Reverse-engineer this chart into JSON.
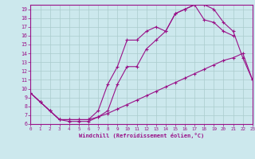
{
  "xlabel": "Windchill (Refroidissement éolien,°C)",
  "bg_color": "#cce8ed",
  "grid_color": "#aacccc",
  "line_color": "#991188",
  "xlim": [
    0,
    23
  ],
  "ylim": [
    6,
    19.5
  ],
  "xticks": [
    0,
    1,
    2,
    3,
    4,
    5,
    6,
    7,
    8,
    9,
    10,
    11,
    12,
    13,
    14,
    15,
    16,
    17,
    18,
    19,
    20,
    21,
    22,
    23
  ],
  "yticks": [
    6,
    7,
    8,
    9,
    10,
    11,
    12,
    13,
    14,
    15,
    16,
    17,
    18,
    19
  ],
  "line1_x": [
    0,
    1,
    2,
    3,
    4,
    5,
    6,
    7,
    8,
    9,
    10,
    11,
    12,
    13,
    14,
    15,
    16,
    17,
    18,
    19,
    20,
    21,
    22,
    23
  ],
  "line1_y": [
    9.5,
    8.5,
    7.5,
    6.5,
    6.5,
    6.5,
    6.5,
    7.5,
    10.5,
    12.5,
    15.5,
    15.5,
    16.5,
    17.0,
    16.5,
    18.5,
    19.0,
    19.5,
    19.5,
    19.0,
    17.5,
    16.5,
    13.5,
    11.0
  ],
  "line2_x": [
    0,
    1,
    2,
    3,
    4,
    5,
    6,
    7,
    8,
    9,
    10,
    11,
    12,
    13,
    14,
    15,
    16,
    17,
    18,
    19,
    20,
    21
  ],
  "line2_y": [
    9.5,
    8.5,
    7.5,
    6.5,
    6.3,
    6.3,
    6.3,
    6.8,
    7.5,
    10.5,
    12.5,
    12.5,
    14.5,
    15.5,
    16.5,
    18.5,
    19.0,
    19.5,
    17.8,
    17.5,
    16.5,
    16.0
  ],
  "line3_x": [
    0,
    1,
    2,
    3,
    4,
    5,
    6,
    7,
    8,
    9,
    10,
    11,
    12,
    13,
    14,
    15,
    16,
    17,
    18,
    19,
    20,
    21,
    22,
    23
  ],
  "line3_y": [
    9.5,
    8.5,
    7.5,
    6.5,
    6.5,
    6.5,
    6.5,
    6.8,
    7.2,
    7.7,
    8.2,
    8.7,
    9.2,
    9.7,
    10.2,
    10.7,
    11.2,
    11.7,
    12.2,
    12.7,
    13.2,
    13.5,
    14.0,
    11.0
  ]
}
